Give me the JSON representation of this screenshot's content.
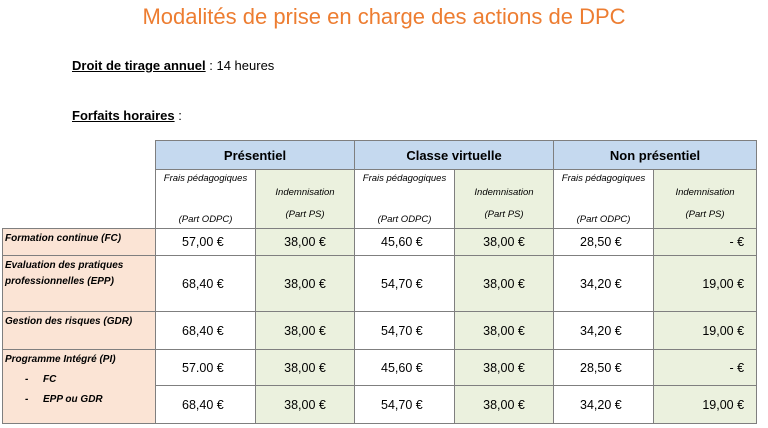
{
  "title": "Modalités de prise en charge des actions de DPC",
  "droit": {
    "label": "Droit de tirage annuel",
    "value": " : 14 heures"
  },
  "forfaits": {
    "label": "Forfaits horaires",
    "suffix": " :"
  },
  "table": {
    "groups": [
      "Présentiel",
      "Classe virtuelle",
      "Non présentiel"
    ],
    "sub": {
      "frais_top": "Frais pédagogiques",
      "frais_bot": "(Part ODPC)",
      "ind_top": "Indemnisation",
      "ind_bot": "(Part PS)"
    },
    "rows": [
      {
        "label": "Formation continue (FC)",
        "values": [
          "57,00 €",
          "38,00 €",
          "45,60 €",
          "38,00 €",
          "28,50 €",
          "-  €"
        ]
      },
      {
        "label": "Evaluation des pratiques professionnelles  (EPP)",
        "values": [
          "68,40 €",
          "38,00 €",
          "54,70 €",
          "38,00 €",
          "34,20 €",
          "19,00 €"
        ]
      },
      {
        "label": "Gestion des risques (GDR)",
        "values": [
          "68,40 €",
          "38,00 €",
          "54,70 €",
          "38,00 €",
          "34,20 €",
          "19,00 €"
        ]
      }
    ],
    "pi": {
      "label": "Programme Intégré (PI)",
      "items": [
        "FC",
        "EPP ou GDR"
      ],
      "rows": [
        [
          "57.00 €",
          "38,00 €",
          "45,60 €",
          "38,00 €",
          "28,50 €",
          "-  €"
        ],
        [
          "68,40 €",
          "38,00 €",
          "54,70 €",
          "38,00 €",
          "34,20 €",
          "19,00 €"
        ]
      ]
    }
  }
}
